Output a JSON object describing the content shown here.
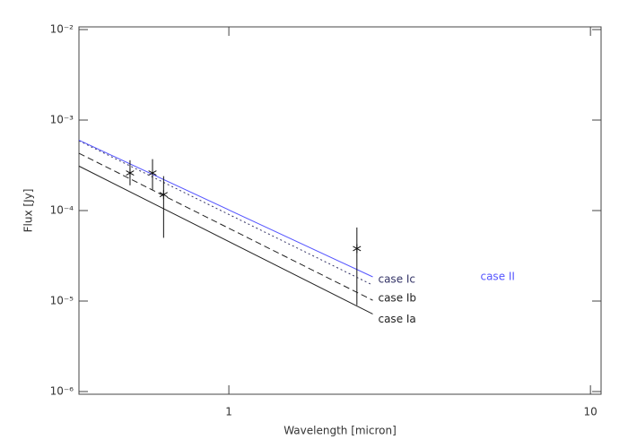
{
  "chart_data": {
    "type": "line",
    "x_label": "Wavelength [micron]",
    "y_label": "Flux [Jy]",
    "xscale": "log",
    "yscale": "log",
    "xlim": [
      0.385,
      10.7
    ],
    "ylim": [
      1e-06,
      0.01
    ],
    "xticks": [
      1,
      10
    ],
    "yticks": [
      {
        "value": 1e-06,
        "label": "10⁻⁶"
      },
      {
        "value": 1e-05,
        "label": "10⁻⁵"
      },
      {
        "value": 0.0001,
        "label": "10⁻⁴"
      },
      {
        "value": 0.001,
        "label": "10⁻³"
      },
      {
        "value": 0.01,
        "label": "10⁻²"
      }
    ],
    "series": [
      {
        "name": "case Ic",
        "color": "#333366",
        "dash": "dotted",
        "x": [
          0.385,
          2.5
        ],
        "values": [
          0.00059,
          1.5e-05
        ]
      },
      {
        "name": "case Ib",
        "color": "#222222",
        "dash": "dashed",
        "x": [
          0.385,
          2.5
        ],
        "values": [
          0.00043,
          1.02e-05
        ]
      },
      {
        "name": "case Ia",
        "color": "#222222",
        "dash": "solid",
        "x": [
          0.385,
          2.5
        ],
        "values": [
          0.00031,
          7.2e-06
        ]
      },
      {
        "name": "case II",
        "color": "#5555ff",
        "dash": "solid",
        "x": [
          0.385,
          2.5
        ],
        "values": [
          0.0006,
          1.85e-05
        ]
      }
    ],
    "points": {
      "color": "#111111",
      "x": [
        0.533,
        0.615,
        0.66,
        2.26
      ],
      "values": [
        0.00026,
        0.00026,
        0.00015,
        3.8e-05
      ],
      "err_low": [
        7e-05,
        9e-05,
        0.0001,
        2.9e-05
      ],
      "err_high": [
        0.0001,
        0.00011,
        9e-05,
        2.7e-05
      ]
    }
  }
}
